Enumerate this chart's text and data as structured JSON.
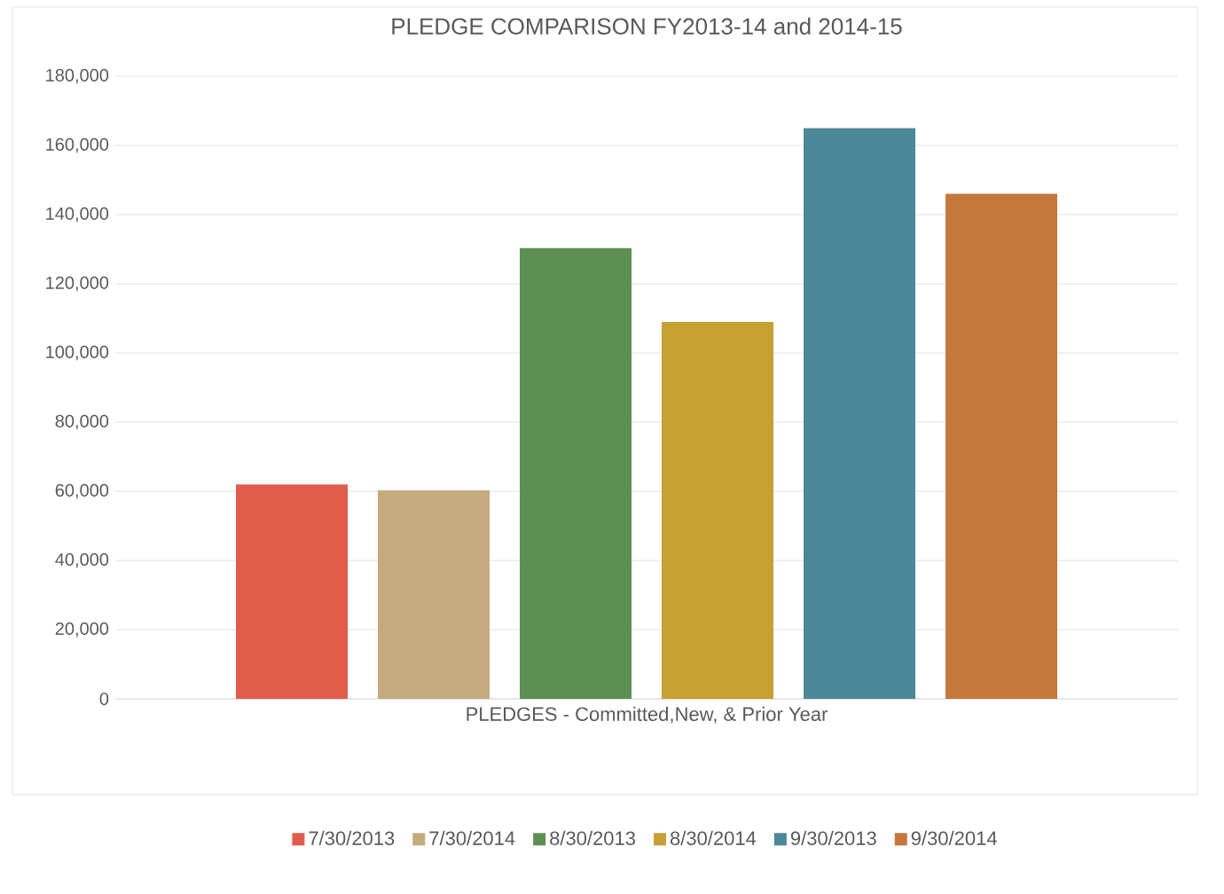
{
  "chart_data": {
    "type": "bar",
    "title": "PLEDGE COMPARISON FY2013-14 and 2014-15",
    "xlabel": "PLEDGES - Committed,New, & Prior Year",
    "categories": [
      null
    ],
    "series": [
      {
        "name": "7/30/2013",
        "color": "#e05c4b",
        "values": [
          62000
        ]
      },
      {
        "name": "7/30/2014",
        "color": "#c4ab7e",
        "values": [
          60300
        ]
      },
      {
        "name": "8/30/2013",
        "color": "#5d8f53",
        "values": [
          130300
        ]
      },
      {
        "name": "8/30/2014",
        "color": "#c7a033",
        "values": [
          109000
        ]
      },
      {
        "name": "9/30/2013",
        "color": "#4c8898",
        "values": [
          165000
        ]
      },
      {
        "name": "9/30/2014",
        "color": "#c6773a",
        "values": [
          146000
        ]
      }
    ],
    "ylim": [
      0,
      180000
    ],
    "yticks": [
      {
        "value": 0,
        "label": "0"
      },
      {
        "value": 20000,
        "label": "20,000"
      },
      {
        "value": 40000,
        "label": "40,000"
      },
      {
        "value": 60000,
        "label": "60,000"
      },
      {
        "value": 80000,
        "label": "80,000"
      },
      {
        "value": 100000,
        "label": "100,000"
      },
      {
        "value": 120000,
        "label": "120,000"
      },
      {
        "value": 140000,
        "label": "140,000"
      },
      {
        "value": 160000,
        "label": "160,000"
      },
      {
        "value": 180000,
        "label": "180,000"
      }
    ],
    "grid": "y",
    "legend": "bottom"
  }
}
